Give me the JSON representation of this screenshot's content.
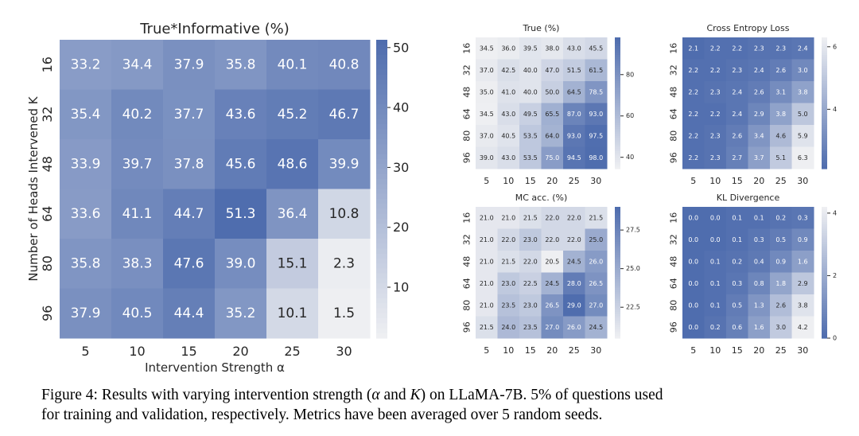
{
  "caption": {
    "line1_a": "Figure 4: Results with varying intervention strength (",
    "alpha": "α",
    "line1_b": " and ",
    "K": "K",
    "line1_c": ") on LLaMA-7B. 5% of questions used",
    "line2": "for training and validation, respectively. Metrics have been averaged over 5 random seeds."
  },
  "colors": {
    "dark": "#4f6dae",
    "light": "#eeeff2"
  },
  "chart_data": [
    {
      "type": "heatmap",
      "title": "True*Informative (%)",
      "xlabel": "Intervention Strength α",
      "ylabel": "Number of Heads Intervened K",
      "xticks": [
        "5",
        "10",
        "15",
        "20",
        "25",
        "30"
      ],
      "yticks": [
        "16",
        "32",
        "48",
        "64",
        "80",
        "96"
      ],
      "values": [
        [
          33.2,
          34.4,
          37.9,
          35.8,
          40.1,
          40.8
        ],
        [
          35.4,
          40.2,
          37.7,
          43.6,
          45.2,
          46.7
        ],
        [
          33.9,
          39.7,
          37.8,
          45.6,
          48.6,
          39.9
        ],
        [
          33.6,
          41.1,
          44.7,
          51.3,
          36.4,
          10.8
        ],
        [
          35.8,
          38.3,
          47.6,
          39.0,
          15.1,
          2.3
        ],
        [
          37.9,
          40.5,
          44.4,
          35.2,
          10.1,
          1.5
        ]
      ],
      "colorbar": {
        "range": [
          1.5,
          51.3
        ],
        "ticks": [
          "10",
          "20",
          "30",
          "40",
          "50"
        ],
        "reversed": false
      }
    },
    {
      "type": "heatmap",
      "title": "True (%)",
      "xticks": [
        "5",
        "10",
        "15",
        "20",
        "25",
        "30"
      ],
      "yticks": [
        "16",
        "32",
        "48",
        "64",
        "80",
        "96"
      ],
      "values": [
        [
          34.5,
          36.0,
          39.5,
          38.0,
          43.0,
          45.5
        ],
        [
          37.0,
          42.5,
          40.0,
          47.0,
          51.5,
          61.5
        ],
        [
          35.0,
          41.0,
          40.0,
          50.0,
          64.5,
          78.5
        ],
        [
          34.5,
          43.0,
          49.5,
          65.5,
          87.0,
          93.0
        ],
        [
          37.0,
          40.5,
          53.5,
          64.0,
          93.0,
          97.5
        ],
        [
          39.0,
          43.0,
          53.5,
          75.0,
          94.5,
          98.0
        ]
      ],
      "colorbar": {
        "range": [
          34.5,
          98.0
        ],
        "ticks": [
          "40",
          "60",
          "80"
        ],
        "reversed": false
      }
    },
    {
      "type": "heatmap",
      "title": "Cross Entropy Loss",
      "xticks": [
        "5",
        "10",
        "15",
        "20",
        "25",
        "30"
      ],
      "yticks": [
        "16",
        "32",
        "48",
        "64",
        "80",
        "96"
      ],
      "values": [
        [
          2.1,
          2.2,
          2.2,
          2.3,
          2.3,
          2.4
        ],
        [
          2.2,
          2.2,
          2.3,
          2.4,
          2.6,
          3.0
        ],
        [
          2.2,
          2.3,
          2.4,
          2.6,
          3.1,
          3.8
        ],
        [
          2.2,
          2.2,
          2.4,
          2.9,
          3.8,
          5.0
        ],
        [
          2.2,
          2.3,
          2.6,
          3.4,
          4.6,
          5.9
        ],
        [
          2.2,
          2.3,
          2.7,
          3.7,
          5.1,
          6.3
        ]
      ],
      "colorbar": {
        "range": [
          2.1,
          6.3
        ],
        "ticks": [
          "4",
          "6"
        ],
        "reversed": true
      }
    },
    {
      "type": "heatmap",
      "title": "MC acc. (%)",
      "xticks": [
        "5",
        "10",
        "15",
        "20",
        "25",
        "30"
      ],
      "yticks": [
        "16",
        "32",
        "48",
        "64",
        "80",
        "96"
      ],
      "values": [
        [
          21.0,
          21.0,
          21.5,
          22.0,
          22.0,
          21.5
        ],
        [
          21.0,
          22.0,
          23.0,
          22.0,
          22.0,
          25.0
        ],
        [
          21.0,
          21.5,
          22.0,
          20.5,
          24.5,
          26.0
        ],
        [
          21.0,
          23.0,
          22.5,
          24.5,
          28.0,
          26.5
        ],
        [
          21.0,
          23.5,
          23.0,
          26.5,
          29.0,
          27.0
        ],
        [
          21.5,
          24.0,
          23.5,
          27.0,
          26.0,
          24.5
        ]
      ],
      "colorbar": {
        "range": [
          20.5,
          29.0
        ],
        "ticks": [
          "22.5",
          "25.0",
          "27.5"
        ],
        "reversed": false
      }
    },
    {
      "type": "heatmap",
      "title": "KL Divergence",
      "xticks": [
        "5",
        "10",
        "15",
        "20",
        "25",
        "30"
      ],
      "yticks": [
        "16",
        "32",
        "48",
        "64",
        "80",
        "96"
      ],
      "values": [
        [
          0.0,
          0.0,
          0.1,
          0.1,
          0.2,
          0.3
        ],
        [
          0.0,
          0.0,
          0.1,
          0.3,
          0.5,
          0.9
        ],
        [
          0.0,
          0.1,
          0.2,
          0.4,
          0.9,
          1.6
        ],
        [
          0.0,
          0.1,
          0.3,
          0.8,
          1.8,
          2.9
        ],
        [
          0.0,
          0.1,
          0.5,
          1.3,
          2.6,
          3.8
        ],
        [
          0.0,
          0.2,
          0.6,
          1.6,
          3.0,
          4.2
        ]
      ],
      "colorbar": {
        "range": [
          0.0,
          4.2
        ],
        "ticks": [
          "0",
          "2",
          "4"
        ],
        "reversed": true
      }
    }
  ]
}
